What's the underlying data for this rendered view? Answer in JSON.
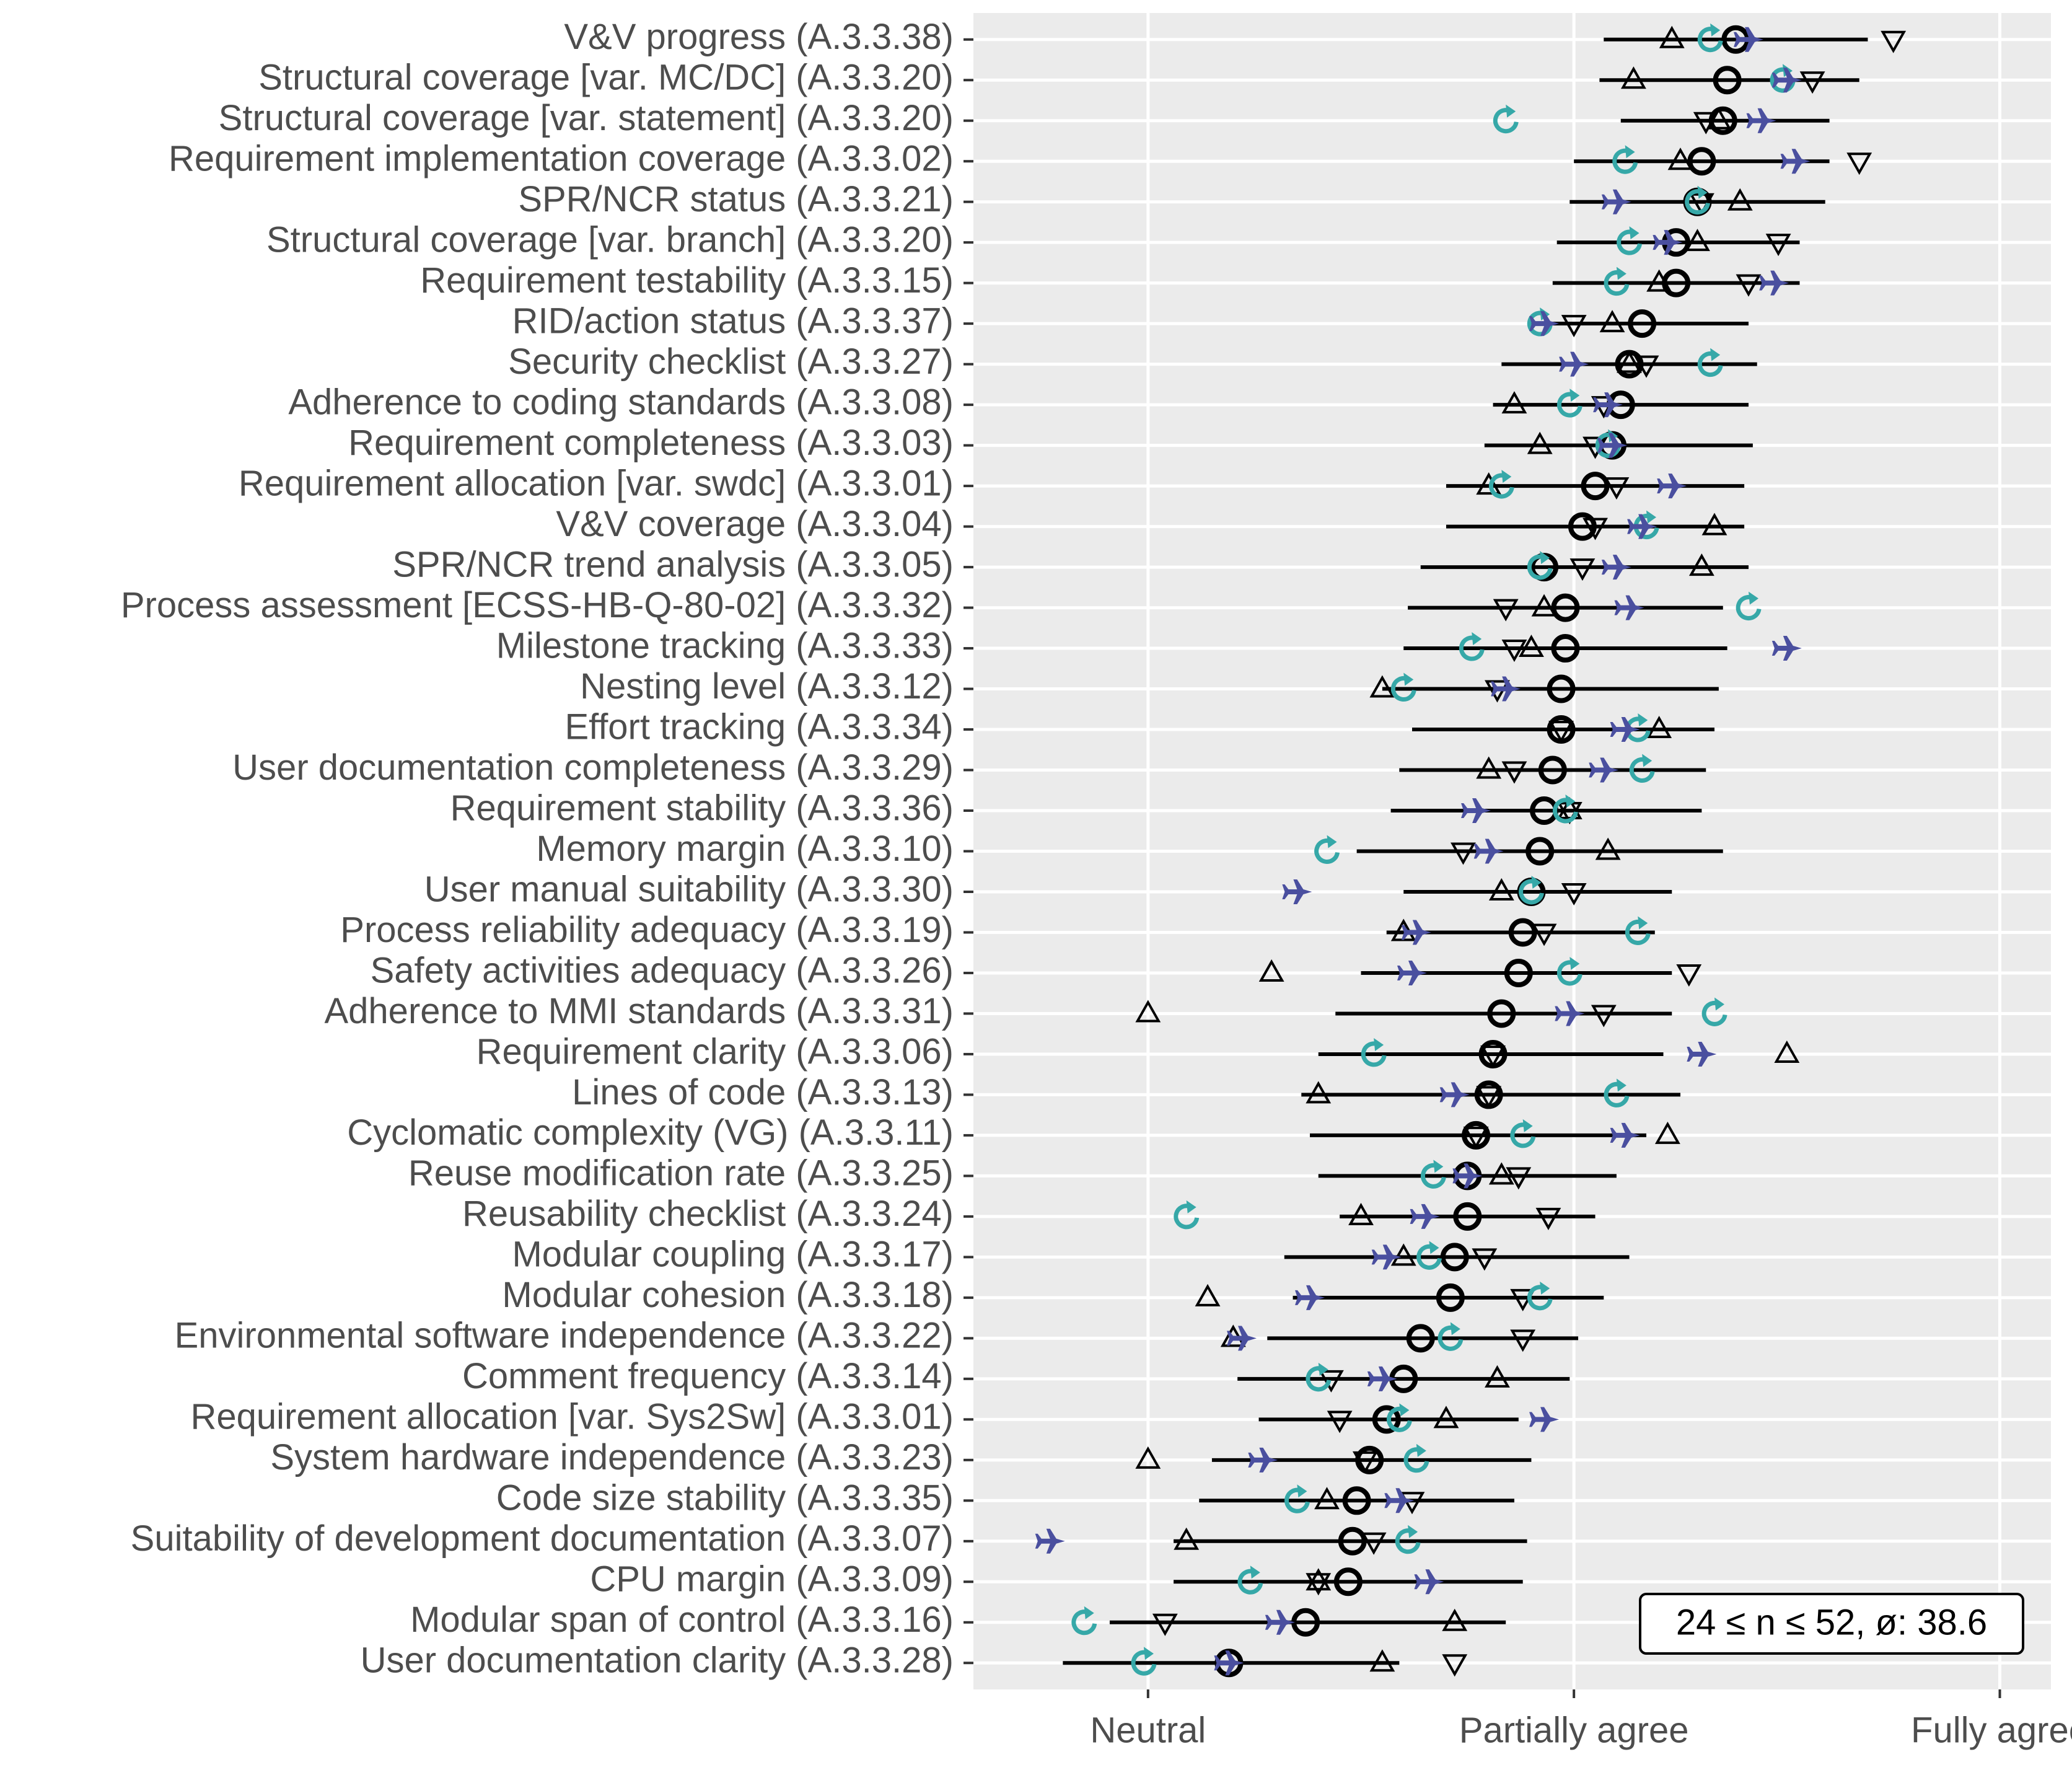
{
  "chart_data": {
    "type": "dot-range",
    "categories": [
      "V&V progress (A.3.3.38)",
      "Structural coverage [var. MC/DC] (A.3.3.20)",
      "Structural coverage [var. statement] (A.3.3.20)",
      "Requirement implementation coverage (A.3.3.02)",
      "SPR/NCR status (A.3.3.21)",
      "Structural coverage [var. branch] (A.3.3.20)",
      "Requirement testability (A.3.3.15)",
      "RID/action status (A.3.3.37)",
      "Security checklist (A.3.3.27)",
      "Adherence to coding standards (A.3.3.08)",
      "Requirement completeness (A.3.3.03)",
      "Requirement allocation [var. swdc] (A.3.3.01)",
      "V&V coverage (A.3.3.04)",
      "SPR/NCR trend analysis (A.3.3.05)",
      "Process assessment [ECSS-HB-Q-80-02] (A.3.3.32)",
      "Milestone tracking (A.3.3.33)",
      "Nesting level (A.3.3.12)",
      "Effort tracking (A.3.3.34)",
      "User documentation completeness (A.3.3.29)",
      "Requirement stability (A.3.3.36)",
      "Memory margin (A.3.3.10)",
      "User manual suitability (A.3.3.30)",
      "Process reliability adequacy (A.3.3.19)",
      "Safety activities adequacy (A.3.3.26)",
      "Adherence to MMI standards (A.3.3.31)",
      "Requirement clarity (A.3.3.06)",
      "Lines of code (A.3.3.13)",
      "Cyclomatic complexity (VG) (A.3.3.11)",
      "Reuse modification rate (A.3.3.25)",
      "Reusability checklist (A.3.3.24)",
      "Modular coupling (A.3.3.17)",
      "Modular cohesion (A.3.3.18)",
      "Environmental software independence (A.3.3.22)",
      "Comment frequency (A.3.3.14)",
      "Requirement allocation [var. Sys2Sw] (A.3.3.01)",
      "System hardware independence (A.3.3.23)",
      "Code size stability (A.3.3.35)",
      "Suitability of development documentation (A.3.3.07)",
      "CPU margin (A.3.3.09)",
      "Modular span of control (A.3.3.16)",
      "User documentation clarity (A.3.3.28)"
    ],
    "ranges": {
      "low": [
        4.07,
        4.06,
        4.11,
        4.0,
        3.99,
        3.96,
        3.95,
        3.9,
        3.83,
        3.81,
        3.79,
        3.7,
        3.7,
        3.64,
        3.61,
        3.6,
        3.55,
        3.62,
        3.59,
        3.57,
        3.49,
        3.6,
        3.56,
        3.5,
        3.44,
        3.4,
        3.36,
        3.38,
        3.4,
        3.45,
        3.32,
        3.34,
        3.28,
        3.21,
        3.26,
        3.15,
        3.12,
        3.06,
        3.06,
        2.91,
        2.8
      ],
      "high": [
        4.69,
        4.67,
        4.6,
        4.6,
        4.59,
        4.53,
        4.53,
        4.41,
        4.43,
        4.41,
        4.42,
        4.4,
        4.4,
        4.41,
        4.35,
        4.36,
        4.34,
        4.33,
        4.31,
        4.3,
        4.35,
        4.23,
        4.19,
        4.23,
        4.23,
        4.21,
        4.25,
        4.17,
        4.1,
        4.05,
        4.13,
        4.07,
        4.01,
        3.99,
        3.87,
        3.9,
        3.86,
        3.89,
        3.88,
        3.84,
        3.59
      ]
    },
    "series": [
      {
        "marker": "circle",
        "color": "#000000",
        "values": [
          4.38,
          4.36,
          4.35,
          4.3,
          4.29,
          4.24,
          4.24,
          4.16,
          4.13,
          4.11,
          4.09,
          4.05,
          4.02,
          3.93,
          3.98,
          3.98,
          3.97,
          3.97,
          3.95,
          3.93,
          3.92,
          3.9,
          3.88,
          3.87,
          3.83,
          3.81,
          3.8,
          3.77,
          3.75,
          3.75,
          3.72,
          3.71,
          3.64,
          3.6,
          3.56,
          3.52,
          3.49,
          3.48,
          3.47,
          3.37,
          3.19
        ]
      },
      {
        "marker": "triangle-up",
        "color": "#000000",
        "values": [
          4.23,
          4.14,
          4.34,
          4.25,
          4.39,
          4.29,
          4.2,
          4.09,
          4.13,
          3.86,
          3.92,
          3.8,
          4.33,
          4.3,
          3.93,
          3.9,
          3.55,
          4.2,
          3.8,
          3.99,
          4.08,
          3.83,
          3.6,
          3.29,
          3.0,
          4.5,
          3.4,
          4.22,
          3.83,
          3.5,
          3.6,
          3.14,
          3.2,
          3.82,
          3.7,
          3.0,
          3.42,
          3.09,
          3.4,
          3.72,
          3.55
        ]
      },
      {
        "marker": "triangle-down",
        "color": "#000000",
        "values": [
          4.75,
          4.56,
          4.31,
          4.67,
          4.3,
          4.48,
          4.41,
          4.0,
          4.17,
          4.07,
          4.05,
          4.1,
          4.05,
          4.02,
          3.84,
          3.86,
          3.82,
          3.97,
          3.86,
          3.99,
          3.74,
          4.0,
          3.93,
          4.27,
          4.07,
          3.81,
          3.8,
          3.77,
          3.87,
          3.94,
          3.79,
          3.88,
          3.88,
          3.43,
          3.45,
          3.51,
          3.62,
          3.53,
          3.4,
          3.04,
          3.72
        ]
      },
      {
        "marker": "rotate",
        "color": "#36a8a8",
        "values": [
          4.32,
          4.49,
          3.84,
          4.12,
          4.29,
          4.13,
          4.1,
          3.92,
          4.32,
          3.99,
          4.08,
          3.83,
          4.17,
          3.92,
          4.41,
          3.76,
          3.6,
          4.15,
          4.16,
          3.98,
          3.42,
          3.9,
          4.15,
          3.99,
          4.33,
          3.53,
          4.1,
          3.88,
          3.67,
          3.09,
          3.66,
          3.92,
          3.71,
          3.4,
          3.59,
          3.63,
          3.35,
          3.61,
          3.24,
          2.85,
          2.99
        ]
      },
      {
        "marker": "plane",
        "color": "#4a4f9f",
        "values": [
          4.41,
          4.5,
          4.44,
          4.52,
          4.1,
          4.22,
          4.47,
          3.93,
          4.0,
          4.08,
          4.09,
          4.23,
          4.16,
          4.1,
          4.13,
          4.5,
          3.84,
          4.12,
          4.07,
          3.77,
          3.8,
          3.35,
          3.63,
          3.62,
          3.99,
          4.3,
          3.72,
          4.12,
          3.75,
          3.65,
          3.56,
          3.38,
          3.22,
          3.55,
          3.93,
          3.27,
          3.59,
          2.77,
          3.66,
          3.31,
          3.19
        ]
      }
    ],
    "xlim": [
      2.59,
      5.12
    ],
    "xticks": [
      {
        "value": 3,
        "label": "Neutral"
      },
      {
        "value": 4,
        "label": "Partially agree"
      },
      {
        "value": 5,
        "label": "Fully agree"
      }
    ],
    "grid": true,
    "annotation": "24 ≤ n ≤ 52, ø: 38.6"
  }
}
